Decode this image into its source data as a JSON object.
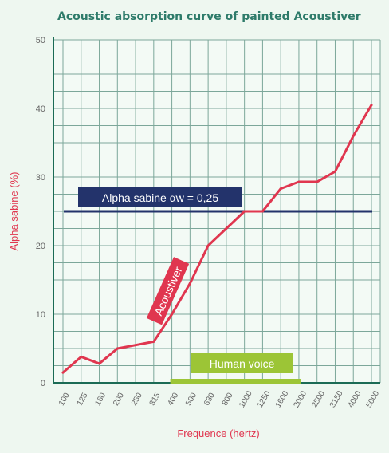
{
  "chart_data": {
    "type": "line",
    "title": "Acoustic absorption curve of painted Acoustiver",
    "xlabel": "Frequence (hertz)",
    "ylabel": "Alpha sabine (%)",
    "ylim": [
      0,
      50
    ],
    "yticks": [
      0,
      10,
      20,
      30,
      40,
      50
    ],
    "grid": true,
    "categories": [
      "100",
      "125",
      "160",
      "200",
      "250",
      "315",
      "400",
      "500",
      "630",
      "800",
      "1000",
      "1250",
      "1600",
      "2000",
      "2500",
      "3150",
      "4000",
      "5000"
    ],
    "series": [
      {
        "name": "Acoustiver",
        "color": "#e0364f",
        "values": [
          1.5,
          3.8,
          2.8,
          5.0,
          5.5,
          6.0,
          10.0,
          14.5,
          20.0,
          22.5,
          25.0,
          25.0,
          28.3,
          29.3,
          29.3,
          30.8,
          36.0,
          40.5
        ]
      }
    ],
    "annotations": {
      "alpha_line": {
        "label": "Alpha sabine αw = 0,25",
        "value": 25,
        "color": "#23336b"
      },
      "human_voice": {
        "label": "Human voice",
        "from": "400",
        "to": "2000",
        "color": "#9cc536"
      }
    }
  }
}
